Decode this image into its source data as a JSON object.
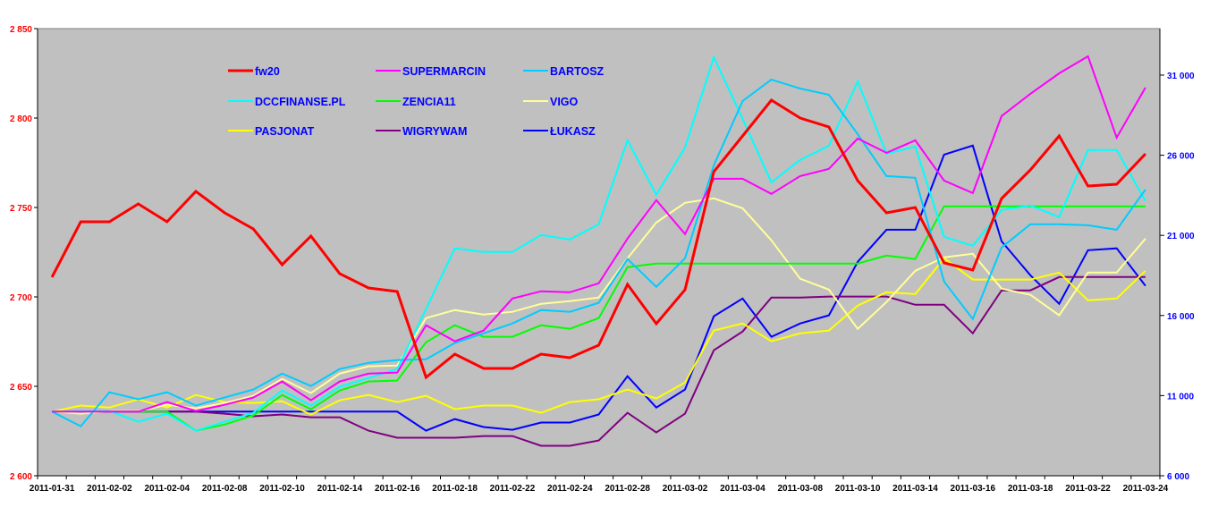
{
  "chart_data": {
    "type": "line",
    "title": "",
    "xlabel": "",
    "ylabel": "",
    "grid": false,
    "legend_position": "top-left",
    "plot_background": "#C0C0C0",
    "x": [
      "2011-01-31",
      "2011-02-01",
      "2011-02-02",
      "2011-02-03",
      "2011-02-04",
      "2011-02-07",
      "2011-02-08",
      "2011-02-09",
      "2011-02-10",
      "2011-02-11",
      "2011-02-14",
      "2011-02-15",
      "2011-02-16",
      "2011-02-17",
      "2011-02-18",
      "2011-02-21",
      "2011-02-22",
      "2011-02-23",
      "2011-02-24",
      "2011-02-25",
      "2011-02-28",
      "2011-03-01",
      "2011-03-02",
      "2011-03-03",
      "2011-03-04",
      "2011-03-07",
      "2011-03-08",
      "2011-03-09",
      "2011-03-10",
      "2011-03-11",
      "2011-03-14",
      "2011-03-15",
      "2011-03-16",
      "2011-03-17",
      "2011-03-18",
      "2011-03-21",
      "2011-03-22",
      "2011-03-23",
      "2011-03-24"
    ],
    "x_tick_labels": [
      "2011-01-31",
      "2011-02-02",
      "2011-02-04",
      "2011-02-08",
      "2011-02-10",
      "2011-02-14",
      "2011-02-16",
      "2011-02-18",
      "2011-02-22",
      "2011-02-24",
      "2011-02-28",
      "2011-03-02",
      "2011-03-04",
      "2011-03-08",
      "2011-03-10",
      "2011-03-14",
      "2011-03-16",
      "2011-03-18",
      "2011-03-22",
      "2011-03-24"
    ],
    "y_left": {
      "range": [
        2600,
        2850
      ],
      "ticks": [
        "2 600",
        "2 650",
        "2 700",
        "2 750",
        "2 800",
        "2 850"
      ],
      "tick_values": [
        2600,
        2650,
        2700,
        2750,
        2800,
        2850
      ],
      "color": "#FF0000"
    },
    "y_right": {
      "range": [
        6000,
        33900
      ],
      "ticks": [
        "6 000",
        "11 000",
        "16 000",
        "21 000",
        "26 000",
        "31 000"
      ],
      "tick_values": [
        6000,
        11000,
        16000,
        21000,
        26000,
        31000
      ],
      "color": "#0000FF"
    },
    "legend_text_color": "#0000FF",
    "series": [
      {
        "name": "fw20",
        "axis": "left",
        "color": "#FF0000",
        "values": [
          2711,
          2742,
          2742,
          2752,
          2742,
          2759,
          2747,
          2738,
          2718,
          2734,
          2713,
          2705,
          2703,
          2655,
          2668,
          2660,
          2660,
          2668,
          2666,
          2673,
          2707,
          2685,
          2704,
          2770,
          2790,
          2810,
          2800,
          2795,
          2765,
          2747,
          2750,
          2719,
          2715,
          2755,
          2771,
          2790,
          2762,
          2763,
          2780
        ]
      },
      {
        "name": "SUPERMARCIN",
        "axis": "right",
        "color": "#FF00FF",
        "values": [
          10000,
          10000,
          10000,
          10000,
          10600,
          10040,
          10430,
          10880,
          11880,
          10710,
          11880,
          12380,
          12440,
          15390,
          14390,
          15060,
          17060,
          17510,
          17450,
          18010,
          20800,
          23200,
          21080,
          24530,
          24530,
          23590,
          24700,
          25150,
          27040,
          26150,
          26930,
          24420,
          23640,
          28440,
          29830,
          31110,
          32170,
          27100,
          30220
        ]
      },
      {
        "name": "BARTOSZ",
        "axis": "right",
        "color": "#00CCFF",
        "values": [
          10000,
          9090,
          11210,
          10770,
          11210,
          10380,
          10880,
          11380,
          12380,
          11600,
          12660,
          13050,
          13220,
          13270,
          14280,
          14890,
          15500,
          16340,
          16230,
          16790,
          19520,
          17790,
          19570,
          25370,
          29380,
          30720,
          30160,
          29770,
          27320,
          24700,
          24590,
          18120,
          15780,
          20240,
          21690,
          21690,
          21630,
          21350,
          23860
        ]
      },
      {
        "name": "DCCFINANSE.PL",
        "axis": "right",
        "color": "#00FFFF",
        "values": [
          10000,
          10040,
          10040,
          9370,
          9870,
          8810,
          9370,
          9930,
          11320,
          10380,
          11550,
          12100,
          12660,
          16400,
          20190,
          19960,
          19960,
          21020,
          20740,
          21690,
          26930,
          23530,
          26480,
          32110,
          28270,
          24310,
          25710,
          26590,
          30610,
          26100,
          26540,
          20910,
          20350,
          22580,
          22860,
          22140,
          26320,
          26320,
          23140
        ]
      },
      {
        "name": "ZENCIA11",
        "axis": "right",
        "color": "#00FF00",
        "values": [
          10000,
          10000,
          10000,
          10000,
          10000,
          8810,
          9200,
          9760,
          11040,
          10150,
          11320,
          11880,
          11940,
          14330,
          15390,
          14670,
          14670,
          15390,
          15170,
          15840,
          19020,
          19240,
          19240,
          19240,
          19240,
          19240,
          19240,
          19240,
          19240,
          19740,
          19520,
          22810,
          22810,
          22810,
          22810,
          22810,
          22810,
          22810,
          22810
        ]
      },
      {
        "name": "VIGO",
        "axis": "right",
        "color": "#FFFF99",
        "values": [
          10000,
          9870,
          10040,
          10040,
          10430,
          10210,
          10540,
          10990,
          12050,
          11160,
          12380,
          12830,
          12880,
          15840,
          16340,
          16060,
          16230,
          16730,
          16900,
          17120,
          19570,
          21800,
          23030,
          23310,
          22690,
          20690,
          18290,
          17620,
          15170,
          16840,
          18790,
          19630,
          19850,
          17680,
          17290,
          16010,
          18680,
          18680,
          20800
        ]
      },
      {
        "name": "PASJONAT",
        "axis": "right",
        "color": "#FFFF00",
        "values": [
          10000,
          10380,
          10260,
          10770,
          10260,
          11040,
          10600,
          10540,
          10650,
          9820,
          10710,
          11040,
          10600,
          10990,
          10150,
          10380,
          10380,
          9930,
          10600,
          10770,
          11380,
          10820,
          11820,
          15060,
          15500,
          14390,
          14890,
          15060,
          16620,
          17450,
          17340,
          19570,
          18240,
          18240,
          18240,
          18680,
          16950,
          17060,
          18790
        ]
      },
      {
        "name": "WIGRYWAM",
        "axis": "right",
        "color": "#800080",
        "values": [
          10000,
          10000,
          10000,
          10000,
          10000,
          10000,
          9870,
          9710,
          9820,
          9650,
          9650,
          8810,
          8370,
          8370,
          8370,
          8480,
          8480,
          7870,
          7870,
          8200,
          9930,
          8700,
          9870,
          13830,
          15000,
          17120,
          17120,
          17180,
          17180,
          17180,
          16670,
          16670,
          14890,
          17570,
          17570,
          18400,
          18400,
          18400,
          18400
        ]
      },
      {
        "name": "ŁUKASZ",
        "axis": "right",
        "color": "#0000FF",
        "values": [
          10000,
          10000,
          10000,
          10000,
          10000,
          10000,
          10000,
          10000,
          10000,
          10000,
          10000,
          10000,
          10000,
          8810,
          9540,
          9040,
          8870,
          9320,
          9320,
          9820,
          12210,
          10260,
          11380,
          15950,
          17060,
          14670,
          15500,
          16010,
          19350,
          21350,
          21350,
          26040,
          26600,
          20630,
          18510,
          16730,
          20070,
          20190,
          17850
        ]
      }
    ]
  }
}
